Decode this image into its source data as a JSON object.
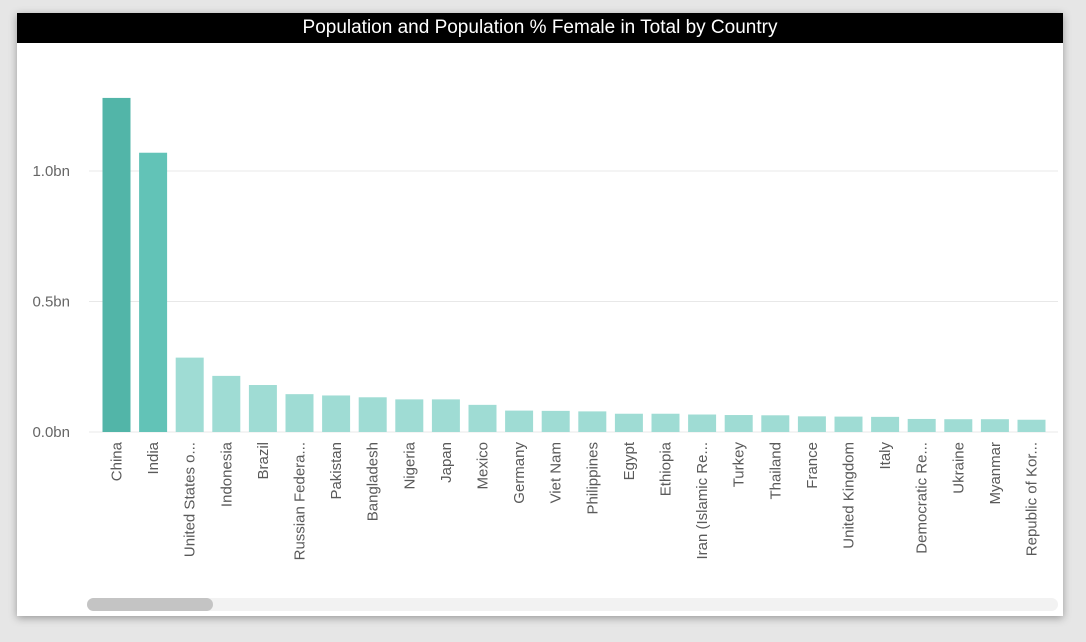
{
  "colors": {
    "title_bg": "#000000",
    "title_fg": "#ffffff",
    "bar_highlight": "#52b5a8",
    "bar_secondary": "#62c3b7",
    "bar_normal": "#9fdcd4",
    "gridline": "#e8e8e8",
    "tick_text": "#666666",
    "category_text": "#5a5a5a"
  },
  "chart_data": {
    "type": "bar",
    "title": "Population and Population % Female in Total by Country",
    "xlabel": "",
    "ylabel": "",
    "y_ticks": [
      {
        "value": 0,
        "label": "0.0bn"
      },
      {
        "value": 0.5,
        "label": "0.5bn"
      },
      {
        "value": 1.0,
        "label": "1.0bn"
      }
    ],
    "ylim": [
      0,
      1.36
    ],
    "value_unit": "billions",
    "grid": true,
    "categories": [
      "China",
      "India",
      "United States o...",
      "Indonesia",
      "Brazil",
      "Russian Federa...",
      "Pakistan",
      "Bangladesh",
      "Nigeria",
      "Japan",
      "Mexico",
      "Germany",
      "Viet Nam",
      "Philippines",
      "Egypt",
      "Ethiopia",
      "Iran (Islamic Re...",
      "Turkey",
      "Thailand",
      "France",
      "United Kingdom",
      "Italy",
      "Democratic Re...",
      "Ukraine",
      "Myanmar",
      "Republic of Kor..."
    ],
    "values": [
      1.28,
      1.07,
      0.285,
      0.215,
      0.18,
      0.145,
      0.14,
      0.133,
      0.125,
      0.125,
      0.104,
      0.082,
      0.081,
      0.079,
      0.07,
      0.07,
      0.067,
      0.065,
      0.064,
      0.06,
      0.059,
      0.058,
      0.05,
      0.049,
      0.049,
      0.047
    ]
  }
}
